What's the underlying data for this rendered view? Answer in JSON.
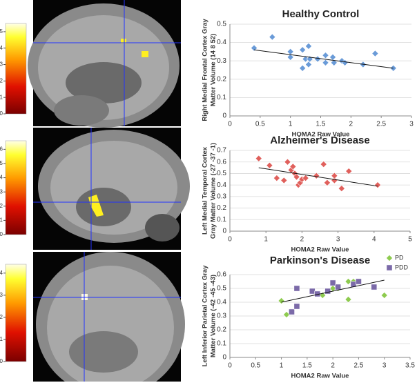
{
  "chart_data": [
    {
      "type": "scatter",
      "title": "Healthy Control",
      "x_label": "HOMA2 Raw Value",
      "y_label": [
        "Right Medial Frontal Cortex Gray",
        "Matter Volume (14 8 52)"
      ],
      "color": "#6a9bd8",
      "marker": "diamond",
      "x": [
        0.4,
        0.7,
        1.0,
        1.0,
        1.2,
        1.25,
        1.3,
        1.2,
        1.3,
        1.32,
        1.45,
        1.58,
        1.58,
        1.7,
        1.72,
        1.85,
        1.9,
        2.2,
        2.4,
        2.7
      ],
      "values": [
        0.37,
        0.43,
        0.35,
        0.32,
        0.36,
        0.31,
        0.38,
        0.26,
        0.28,
        0.31,
        0.31,
        0.33,
        0.29,
        0.32,
        0.29,
        0.3,
        0.29,
        0.28,
        0.34,
        0.26
      ],
      "trend_line": {
        "x": [
          0.4,
          2.7
        ],
        "y": [
          0.36,
          0.26
        ]
      },
      "xlim": [
        0,
        3
      ],
      "xticks": [
        0,
        0.5,
        1,
        1.5,
        2,
        2.5,
        3
      ],
      "ylim": [
        0,
        0.5
      ],
      "yticks": [
        0,
        0.1,
        0.2,
        0.3,
        0.4,
        0.5
      ]
    },
    {
      "type": "scatter",
      "title": "Alzheimer's Disease",
      "x_label": "HOMA2 Raw Value",
      "y_label": [
        "Left Medial Temporal Cortex",
        "Gray Matter Volume (-27 -37 -1)"
      ],
      "color": "#e0605c",
      "marker": "diamond",
      "x": [
        0.8,
        1.1,
        1.3,
        1.5,
        1.6,
        1.7,
        1.75,
        1.8,
        1.85,
        1.9,
        1.95,
        2.0,
        2.1,
        2.4,
        2.6,
        2.7,
        2.9,
        2.9,
        3.1,
        3.3,
        4.1
      ],
      "values": [
        0.63,
        0.57,
        0.46,
        0.44,
        0.6,
        0.53,
        0.56,
        0.5,
        0.47,
        0.4,
        0.42,
        0.45,
        0.46,
        0.48,
        0.58,
        0.42,
        0.44,
        0.48,
        0.37,
        0.52,
        0.4
      ],
      "trend_line": {
        "x": [
          0.8,
          4.1
        ],
        "y": [
          0.55,
          0.39
        ]
      },
      "xlim": [
        0,
        5
      ],
      "xticks": [
        0,
        1,
        2,
        3,
        4,
        5
      ],
      "ylim": [
        0,
        0.7
      ],
      "yticks": [
        0,
        0.1,
        0.2,
        0.3,
        0.4,
        0.5,
        0.6,
        0.7
      ]
    },
    {
      "type": "scatter",
      "title": "Parkinson's Disease",
      "x_label": "HOMA2 Raw Value",
      "y_label": [
        "Left Inferior Parietal Cortex Gray",
        "Matter Volume (-42 -45 -43)"
      ],
      "series": [
        {
          "name": "PD",
          "color": "#8ecb4f",
          "marker": "diamond",
          "x": [
            1.0,
            1.1,
            1.8,
            2.0,
            2.1,
            2.3,
            2.3,
            2.4,
            2.5,
            3.0
          ],
          "values": [
            0.41,
            0.31,
            0.45,
            0.5,
            0.5,
            0.55,
            0.42,
            0.55,
            0.55,
            0.45
          ]
        },
        {
          "name": "PDD",
          "color": "#7b6aa8",
          "marker": "square",
          "x": [
            1.2,
            1.3,
            1.3,
            1.6,
            1.7,
            1.9,
            2.0,
            2.1,
            2.4,
            2.5,
            2.8
          ],
          "values": [
            0.33,
            0.5,
            0.37,
            0.48,
            0.46,
            0.48,
            0.54,
            0.51,
            0.53,
            0.55,
            0.51
          ]
        }
      ],
      "trend_line": {
        "x": [
          1.0,
          3.0
        ],
        "y": [
          0.4,
          0.56
        ]
      },
      "legend": "top-right",
      "xlim": [
        0,
        3.5
      ],
      "xticks": [
        0,
        0.5,
        1,
        1.5,
        2,
        2.5,
        3,
        3.5
      ],
      "ylim": [
        0,
        0.6
      ],
      "yticks": [
        0,
        0.1,
        0.2,
        0.3,
        0.4,
        0.5,
        0.6
      ]
    }
  ],
  "colorbars": [
    {
      "lim": [
        0,
        5.5
      ],
      "ticks": [
        0,
        1,
        2,
        3,
        4,
        5
      ]
    },
    {
      "lim": [
        0,
        6.6
      ],
      "ticks": [
        0,
        1,
        2,
        3,
        4,
        5,
        6
      ]
    },
    {
      "lim": [
        0,
        4.4
      ],
      "ticks": [
        0,
        1,
        2,
        3,
        4
      ]
    }
  ]
}
